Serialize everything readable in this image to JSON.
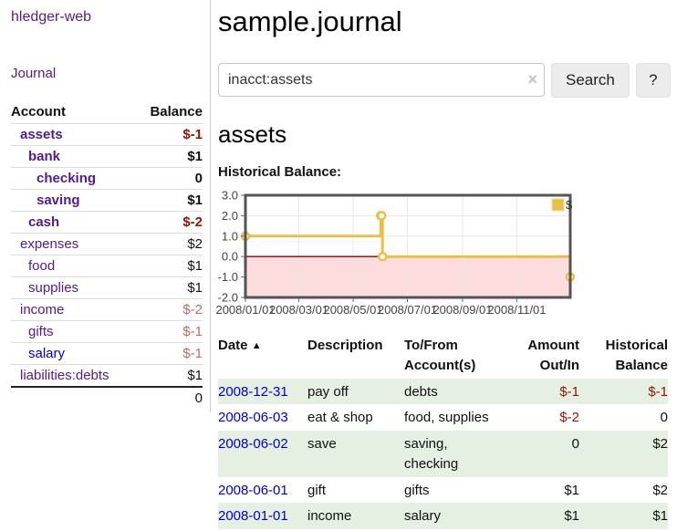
{
  "app": {
    "brand": "hledger-web",
    "nav_journal": "Journal"
  },
  "sidebar": {
    "header": {
      "account": "Account",
      "balance": "Balance"
    },
    "accounts": [
      {
        "name": "assets",
        "balance": "$-1"
      },
      {
        "name": "bank",
        "balance": "$1"
      },
      {
        "name": "checking",
        "balance": "0"
      },
      {
        "name": "saving",
        "balance": "$1"
      },
      {
        "name": "cash",
        "balance": "$-2"
      },
      {
        "name": "expenses",
        "balance": "$2"
      },
      {
        "name": "food",
        "balance": "$1"
      },
      {
        "name": "supplies",
        "balance": "$1"
      },
      {
        "name": "income",
        "balance": "$-2"
      },
      {
        "name": "gifts",
        "balance": "$-1"
      },
      {
        "name": "salary",
        "balance": "$-1"
      },
      {
        "name": "liabilities:debts",
        "balance": "$1"
      }
    ],
    "total": "0"
  },
  "header": {
    "title": "sample.journal"
  },
  "search": {
    "value": "inacct:assets",
    "clear_icon": "×",
    "button": "Search",
    "help_button": "?"
  },
  "account_page": {
    "heading": "assets",
    "chart_label": "Historical Balance:"
  },
  "chart_data": {
    "type": "line",
    "title": "Historical Balance",
    "legend": {
      "position": "top-right",
      "label": "$"
    },
    "x_range": [
      "2008-01-01",
      "2008-12-31"
    ],
    "ylim": [
      -2,
      3
    ],
    "y_ticks": [
      "3.0",
      "2.0",
      "1.0",
      "0.0",
      "-1.0",
      "-2.0"
    ],
    "x_ticks": [
      {
        "date": "2008-01-01",
        "label": "2008/01/01"
      },
      {
        "date": "2008-03-01",
        "label": "2008/03/01"
      },
      {
        "date": "2008-05-01",
        "label": "2008/05/01"
      },
      {
        "date": "2008-07-01",
        "label": "2008/07/01"
      },
      {
        "date": "2008-09-01",
        "label": "2008/09/01"
      },
      {
        "date": "2008-11-01",
        "label": "2008/11/01"
      }
    ],
    "series": [
      {
        "name": "$",
        "type": "step-line",
        "color": "#e9c044",
        "marker": "open-circle",
        "points": [
          [
            "2008-01-01",
            1
          ],
          [
            "2008-06-01",
            2
          ],
          [
            "2008-06-02",
            2
          ],
          [
            "2008-06-03",
            0
          ],
          [
            "2008-12-31",
            -1
          ]
        ]
      }
    ],
    "colors": {
      "negative_region_fill": "#fcdcdc",
      "zero_line": "#8b0000",
      "grid": "#e8e8e8",
      "border": "#545454"
    },
    "grid": true
  },
  "register": {
    "columns": {
      "date": "Date",
      "sort_arrow": "▲",
      "description": "Description",
      "tofrom": "To/From Account(s)",
      "amount": "Amount Out/In",
      "balance": "Historical Balance"
    },
    "rows": [
      {
        "date": "2008-12-31",
        "description": "pay off",
        "accounts": "debts",
        "amount": "$-1",
        "balance": "$-1"
      },
      {
        "date": "2008-06-03",
        "description": "eat & shop",
        "accounts": "food, supplies",
        "amount": "$-2",
        "balance": "0"
      },
      {
        "date": "2008-06-02",
        "description": "save",
        "accounts": "saving,\nchecking",
        "amount": "0",
        "balance": "$2"
      },
      {
        "date": "2008-06-01",
        "description": "gift",
        "accounts": "gifts",
        "amount": "$1",
        "balance": "$2"
      },
      {
        "date": "2008-01-01",
        "description": "income",
        "accounts": "salary",
        "amount": "$1",
        "balance": "$1"
      }
    ]
  }
}
